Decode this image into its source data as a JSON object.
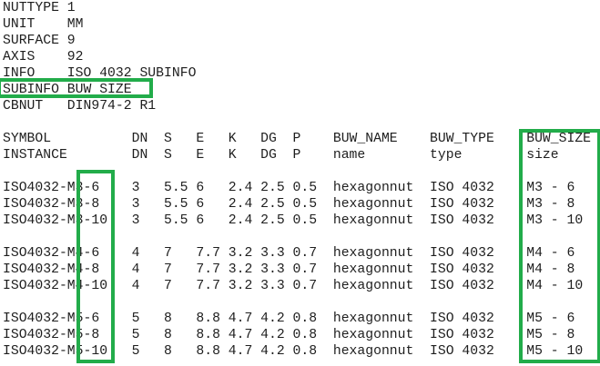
{
  "file_header": {
    "entries": [
      {
        "key": "NUTTYPE",
        "value": "1"
      },
      {
        "key": "UNIT",
        "value": "MM"
      },
      {
        "key": "SURFACE",
        "value": "9"
      },
      {
        "key": "AXIS",
        "value": "92"
      },
      {
        "key": "INFO",
        "value": "ISO 4032 SUBINFO"
      },
      {
        "key": "SUBINFO",
        "value": "BUW SIZE"
      },
      {
        "key": "CBNUT",
        "value": "DIN974-2 R1"
      }
    ]
  },
  "table": {
    "header_rows": [
      {
        "cells": [
          "SYMBOL",
          "DN",
          "S",
          "E",
          "K",
          "DG",
          "P",
          "BUW_NAME",
          "BUW_TYPE",
          "BUW_SIZE"
        ]
      },
      {
        "cells": [
          "INSTANCE",
          "DN",
          "S",
          "E",
          "K",
          "DG",
          "P",
          "name",
          "type",
          "size"
        ]
      }
    ],
    "groups": [
      {
        "rows": [
          {
            "cells": [
              "ISO4032-M3-6",
              "3",
              "5.5",
              "6",
              "2.4",
              "2.5",
              "0.5",
              "hexagonnut",
              "ISO 4032",
              "M3 - 6"
            ]
          },
          {
            "cells": [
              "ISO4032-M3-8",
              "3",
              "5.5",
              "6",
              "2.4",
              "2.5",
              "0.5",
              "hexagonnut",
              "ISO 4032",
              "M3 - 8"
            ]
          },
          {
            "cells": [
              "ISO4032-M3-10",
              "3",
              "5.5",
              "6",
              "2.4",
              "2.5",
              "0.5",
              "hexagonnut",
              "ISO 4032",
              "M3 - 10"
            ]
          }
        ]
      },
      {
        "rows": [
          {
            "cells": [
              "ISO4032-M4-6",
              "4",
              "7",
              "7.7",
              "3.2",
              "3.3",
              "0.7",
              "hexagonnut",
              "ISO 4032",
              "M4 - 6"
            ]
          },
          {
            "cells": [
              "ISO4032-M4-8",
              "4",
              "7",
              "7.7",
              "3.2",
              "3.3",
              "0.7",
              "hexagonnut",
              "ISO 4032",
              "M4 - 8"
            ]
          },
          {
            "cells": [
              "ISO4032-M4-10",
              "4",
              "7",
              "7.7",
              "3.2",
              "3.3",
              "0.7",
              "hexagonnut",
              "ISO 4032",
              "M4 - 10"
            ]
          }
        ]
      },
      {
        "rows": [
          {
            "cells": [
              "ISO4032-M5-6",
              "5",
              "8",
              "8.8",
              "4.7",
              "4.2",
              "0.8",
              "hexagonnut",
              "ISO 4032",
              "M5 - 6"
            ]
          },
          {
            "cells": [
              "ISO4032-M5-8",
              "5",
              "8",
              "8.8",
              "4.7",
              "4.2",
              "0.8",
              "hexagonnut",
              "ISO 4032",
              "M5 - 8"
            ]
          },
          {
            "cells": [
              "ISO4032-M5-10",
              "5",
              "8",
              "8.8",
              "4.7",
              "4.2",
              "0.8",
              "hexagonnut",
              "ISO 4032",
              "M5 - 10"
            ]
          }
        ]
      }
    ]
  },
  "annotations": {
    "highlight_color": "#22ac4a",
    "boxes": [
      {
        "name": "subinfo-row-highlight",
        "highlighted_text": "SUBINFO BUW SIZE"
      },
      {
        "name": "length-suffix-highlight",
        "highlighted_text": "-6 / -8 / -10 symbol suffixes"
      },
      {
        "name": "buw-size-column-highlight",
        "highlighted_text": "BUW_SIZE column"
      }
    ]
  },
  "colors": {
    "text": "#1e1e1e",
    "background": "#ffffff"
  }
}
